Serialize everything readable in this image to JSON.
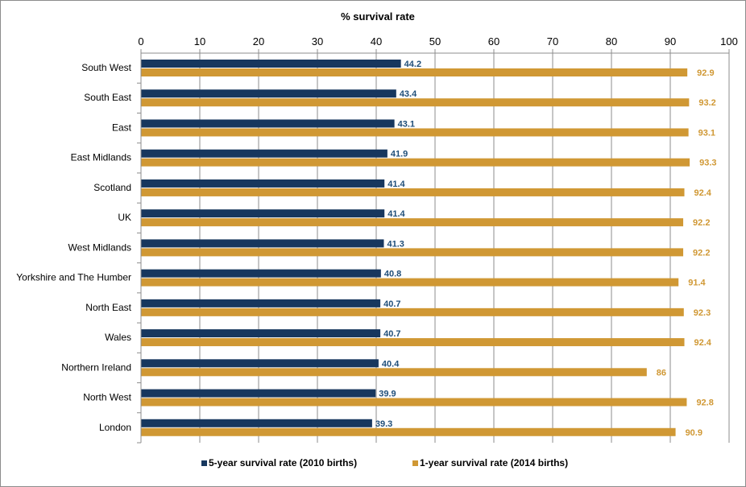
{
  "chart_data": {
    "type": "bar",
    "orientation": "horizontal",
    "title": "",
    "xlabel": "% survival rate",
    "xlabel_position": "top",
    "ylabel": "",
    "xlim": [
      0,
      100
    ],
    "xticks": [
      0,
      10,
      20,
      30,
      40,
      50,
      60,
      70,
      80,
      90,
      100
    ],
    "grid": "vertical",
    "legend_position": "bottom",
    "categories": [
      "South West",
      "South East",
      "East",
      "East Midlands",
      "Scotland",
      "UK",
      "West Midlands",
      "Yorkshire and The Humber",
      "North East",
      "Wales",
      "Northern Ireland",
      "North West",
      "London"
    ],
    "series": [
      {
        "name": "5-year survival rate (2010 births)",
        "color": "#17375e",
        "label_color": "#1f4e79",
        "values": [
          44.2,
          43.4,
          43.1,
          41.9,
          41.4,
          41.4,
          41.3,
          40.8,
          40.7,
          40.7,
          40.4,
          39.9,
          39.3
        ]
      },
      {
        "name": "1-year survival rate (2014 births)",
        "color": "#d09834",
        "label_color": "#d09834",
        "values": [
          92.9,
          93.2,
          93.1,
          93.3,
          92.4,
          92.2,
          92.2,
          91.4,
          92.3,
          92.4,
          86,
          92.8,
          90.9
        ]
      }
    ]
  }
}
